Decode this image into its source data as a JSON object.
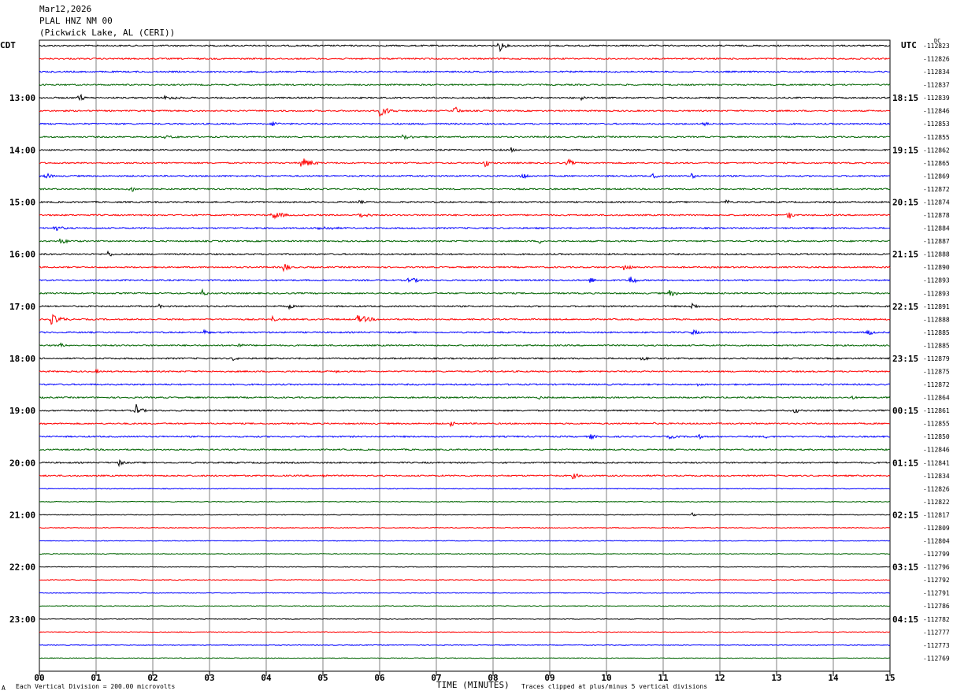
{
  "header": {
    "date": "Mar12,2026",
    "station": "PLAL HNZ NM 00",
    "location": "(Pickwick Lake, AL (CERI))"
  },
  "left_tz": "CDT",
  "right_tz": "UTC",
  "dc_label": "DC",
  "footer": {
    "scale_note": "Each Vertical Division =  200.00 microvolts",
    "clip_note": "Traces clipped at plus/minus 5 vertical divisions",
    "corner_mark": "A"
  },
  "colors": {
    "trace_cycle": [
      "#000000",
      "#ff0000",
      "#0000ff",
      "#006400"
    ],
    "grid": "#808080"
  },
  "chart_data": {
    "type": "line",
    "title": "",
    "xlabel": "TIME (MINUTES)",
    "ylabel": "",
    "xlim": [
      0,
      15
    ],
    "x_ticks": [
      "00",
      "01",
      "02",
      "03",
      "04",
      "05",
      "06",
      "07",
      "08",
      "09",
      "10",
      "11",
      "12",
      "13",
      "14",
      "15"
    ],
    "left_hour_labels": [
      "13:00",
      "14:00",
      "15:00",
      "16:00",
      "17:00",
      "18:00",
      "19:00",
      "20:00",
      "21:00",
      "22:00",
      "23:00"
    ],
    "right_hour_labels": [
      "18:15",
      "19:15",
      "20:15",
      "21:15",
      "22:15",
      "23:15",
      "00:15",
      "01:15",
      "02:15",
      "03:15",
      "04:15"
    ],
    "row_minutes_each": 15,
    "dc_offsets": [
      -112823,
      -112826,
      -112834,
      -112837,
      -112839,
      -112846,
      -112853,
      -112855,
      -112862,
      -112865,
      -112869,
      -112872,
      -112874,
      -112878,
      -112884,
      -112887,
      -112888,
      -112890,
      -112893,
      -112893,
      -112891,
      -112888,
      -112885,
      -112885,
      -112879,
      -112875,
      -112872,
      -112864,
      -112861,
      -112855,
      -112850,
      -112846,
      -112841,
      -112834,
      -112826,
      -112822,
      -112817,
      -112809,
      -112804,
      -112799,
      -112796,
      -112792,
      -112791,
      -112786,
      -112782,
      -112777,
      -112773,
      -112769
    ],
    "events": [
      {
        "row": 0,
        "minute": 8.1,
        "amp": 9,
        "dur": 0.1
      },
      {
        "row": 4,
        "minute": 0.7,
        "amp": 8,
        "dur": 0.05
      },
      {
        "row": 4,
        "minute": 2.2,
        "amp": 3,
        "dur": 0.6
      },
      {
        "row": 4,
        "minute": 9.55,
        "amp": 4,
        "dur": 0.1
      },
      {
        "row": 5,
        "minute": 6.0,
        "amp": 7,
        "dur": 0.3
      },
      {
        "row": 5,
        "minute": 7.3,
        "amp": 8,
        "dur": 0.1
      },
      {
        "row": 6,
        "minute": 4.1,
        "amp": 4,
        "dur": 0.2
      },
      {
        "row": 6,
        "minute": 11.7,
        "amp": 6,
        "dur": 0.05
      },
      {
        "row": 7,
        "minute": 2.2,
        "amp": 2,
        "dur": 1.0
      },
      {
        "row": 7,
        "minute": 6.4,
        "amp": 3,
        "dur": 0.5
      },
      {
        "row": 8,
        "minute": 8.3,
        "amp": 4,
        "dur": 0.1
      },
      {
        "row": 9,
        "minute": 4.6,
        "amp": 8,
        "dur": 0.3
      },
      {
        "row": 9,
        "minute": 7.85,
        "amp": 8,
        "dur": 0.05
      },
      {
        "row": 9,
        "minute": 9.3,
        "amp": 7,
        "dur": 0.1
      },
      {
        "row": 10,
        "minute": 0.1,
        "amp": 6,
        "dur": 0.1
      },
      {
        "row": 10,
        "minute": 8.5,
        "amp": 7,
        "dur": 0.1
      },
      {
        "row": 10,
        "minute": 10.8,
        "amp": 5,
        "dur": 0.1
      },
      {
        "row": 10,
        "minute": 11.5,
        "amp": 4,
        "dur": 0.1
      },
      {
        "row": 11,
        "minute": 1.6,
        "amp": 6,
        "dur": 0.1
      },
      {
        "row": 12,
        "minute": 5.6,
        "amp": 3,
        "dur": 0.2
      },
      {
        "row": 12,
        "minute": 12.1,
        "amp": 5,
        "dur": 0.05
      },
      {
        "row": 13,
        "minute": 4.1,
        "amp": 6,
        "dur": 0.3
      },
      {
        "row": 13,
        "minute": 5.6,
        "amp": 4,
        "dur": 0.4
      },
      {
        "row": 13,
        "minute": 13.2,
        "amp": 9,
        "dur": 0.05
      },
      {
        "row": 14,
        "minute": 0.25,
        "amp": 4,
        "dur": 0.3
      },
      {
        "row": 14,
        "minute": 4.9,
        "amp": 3,
        "dur": 0.8
      },
      {
        "row": 15,
        "minute": 0.35,
        "amp": 4,
        "dur": 0.3
      },
      {
        "row": 15,
        "minute": 8.8,
        "amp": 4,
        "dur": 0.1
      },
      {
        "row": 16,
        "minute": 1.2,
        "amp": 5,
        "dur": 0.1
      },
      {
        "row": 17,
        "minute": 4.3,
        "amp": 8,
        "dur": 0.1
      },
      {
        "row": 17,
        "minute": 10.3,
        "amp": 5,
        "dur": 0.2
      },
      {
        "row": 18,
        "minute": 6.5,
        "amp": 4,
        "dur": 0.4
      },
      {
        "row": 18,
        "minute": 9.7,
        "amp": 5,
        "dur": 0.1
      },
      {
        "row": 18,
        "minute": 10.4,
        "amp": 9,
        "dur": 0.1
      },
      {
        "row": 19,
        "minute": 2.85,
        "amp": 6,
        "dur": 0.1
      },
      {
        "row": 19,
        "minute": 11.1,
        "amp": 5,
        "dur": 0.2
      },
      {
        "row": 20,
        "minute": 2.1,
        "amp": 3,
        "dur": 0.1
      },
      {
        "row": 20,
        "minute": 4.4,
        "amp": 5,
        "dur": 0.05
      },
      {
        "row": 20,
        "minute": 11.5,
        "amp": 6,
        "dur": 0.1
      },
      {
        "row": 21,
        "minute": 0.2,
        "amp": 7,
        "dur": 0.3
      },
      {
        "row": 21,
        "minute": 4.1,
        "amp": 6,
        "dur": 0.05
      },
      {
        "row": 21,
        "minute": 5.6,
        "amp": 6,
        "dur": 0.4
      },
      {
        "row": 22,
        "minute": 2.9,
        "amp": 4,
        "dur": 0.1
      },
      {
        "row": 22,
        "minute": 11.5,
        "amp": 4,
        "dur": 0.2
      },
      {
        "row": 22,
        "minute": 14.6,
        "amp": 6,
        "dur": 0.1
      },
      {
        "row": 23,
        "minute": 0.35,
        "amp": 4,
        "dur": 0.1
      },
      {
        "row": 23,
        "minute": 3.5,
        "amp": 4,
        "dur": 0.1
      },
      {
        "row": 24,
        "minute": 3.4,
        "amp": 4,
        "dur": 0.1
      },
      {
        "row": 24,
        "minute": 10.6,
        "amp": 3,
        "dur": 0.3
      },
      {
        "row": 25,
        "minute": 1.0,
        "amp": 3,
        "dur": 0.1
      },
      {
        "row": 25,
        "minute": 5.2,
        "amp": 3,
        "dur": 0.1
      },
      {
        "row": 26,
        "minute": 11.6,
        "amp": 3,
        "dur": 0.1
      },
      {
        "row": 27,
        "minute": 8.8,
        "amp": 3,
        "dur": 0.1
      },
      {
        "row": 27,
        "minute": 14.3,
        "amp": 4,
        "dur": 0.1
      },
      {
        "row": 28,
        "minute": 1.7,
        "amp": 9,
        "dur": 0.1
      },
      {
        "row": 28,
        "minute": 13.3,
        "amp": 5,
        "dur": 0.1
      },
      {
        "row": 29,
        "minute": 7.25,
        "amp": 4,
        "dur": 0.1
      },
      {
        "row": 29,
        "minute": 10.8,
        "amp": 3,
        "dur": 0.05
      },
      {
        "row": 30,
        "minute": 9.7,
        "amp": 5,
        "dur": 0.1
      },
      {
        "row": 30,
        "minute": 11.1,
        "amp": 3,
        "dur": 0.3
      },
      {
        "row": 30,
        "minute": 11.6,
        "amp": 6,
        "dur": 0.05
      },
      {
        "row": 30,
        "minute": 12.8,
        "amp": 3,
        "dur": 0.05
      },
      {
        "row": 32,
        "minute": 1.4,
        "amp": 5,
        "dur": 0.1
      },
      {
        "row": 33,
        "minute": 5.0,
        "amp": 4,
        "dur": 0.05
      },
      {
        "row": 33,
        "minute": 9.4,
        "amp": 4,
        "dur": 0.2
      },
      {
        "row": 36,
        "minute": 11.5,
        "amp": 3,
        "dur": 0.05
      }
    ]
  }
}
